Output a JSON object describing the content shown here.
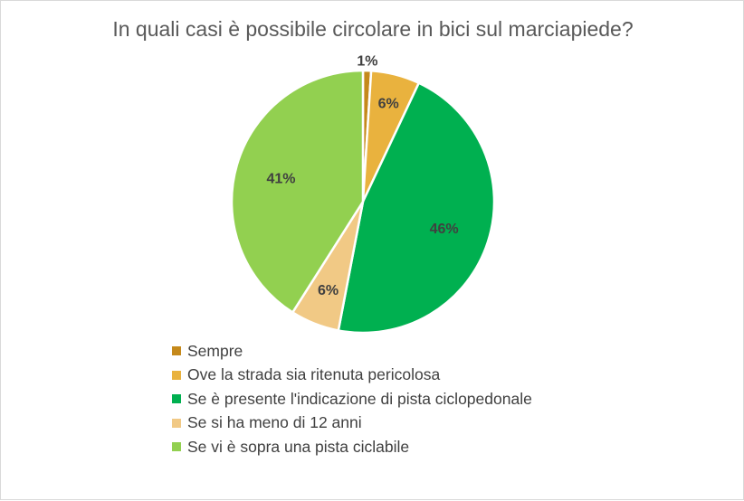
{
  "chart_data": {
    "type": "pie",
    "title": "In quali casi è possibile circolare in bici sul marciapiede?",
    "series": [
      {
        "label": "Sempre",
        "value": 1,
        "display": "1%",
        "color": "#c5891b"
      },
      {
        "label": "Ove la strada sia ritenuta pericolosa",
        "value": 6,
        "display": "6%",
        "color": "#e9b23e"
      },
      {
        "label": "Se è presente l'indicazione di pista ciclopedonale",
        "value": 46,
        "display": "46%",
        "color": "#00b050"
      },
      {
        "label": "Se si ha meno di 12 anni",
        "value": 6,
        "display": "6%",
        "color": "#f1c985"
      },
      {
        "label": "Se vi è sopra una pista ciclabile",
        "value": 41,
        "display": "41%",
        "color": "#92d050"
      }
    ],
    "legend_position": "bottom"
  }
}
